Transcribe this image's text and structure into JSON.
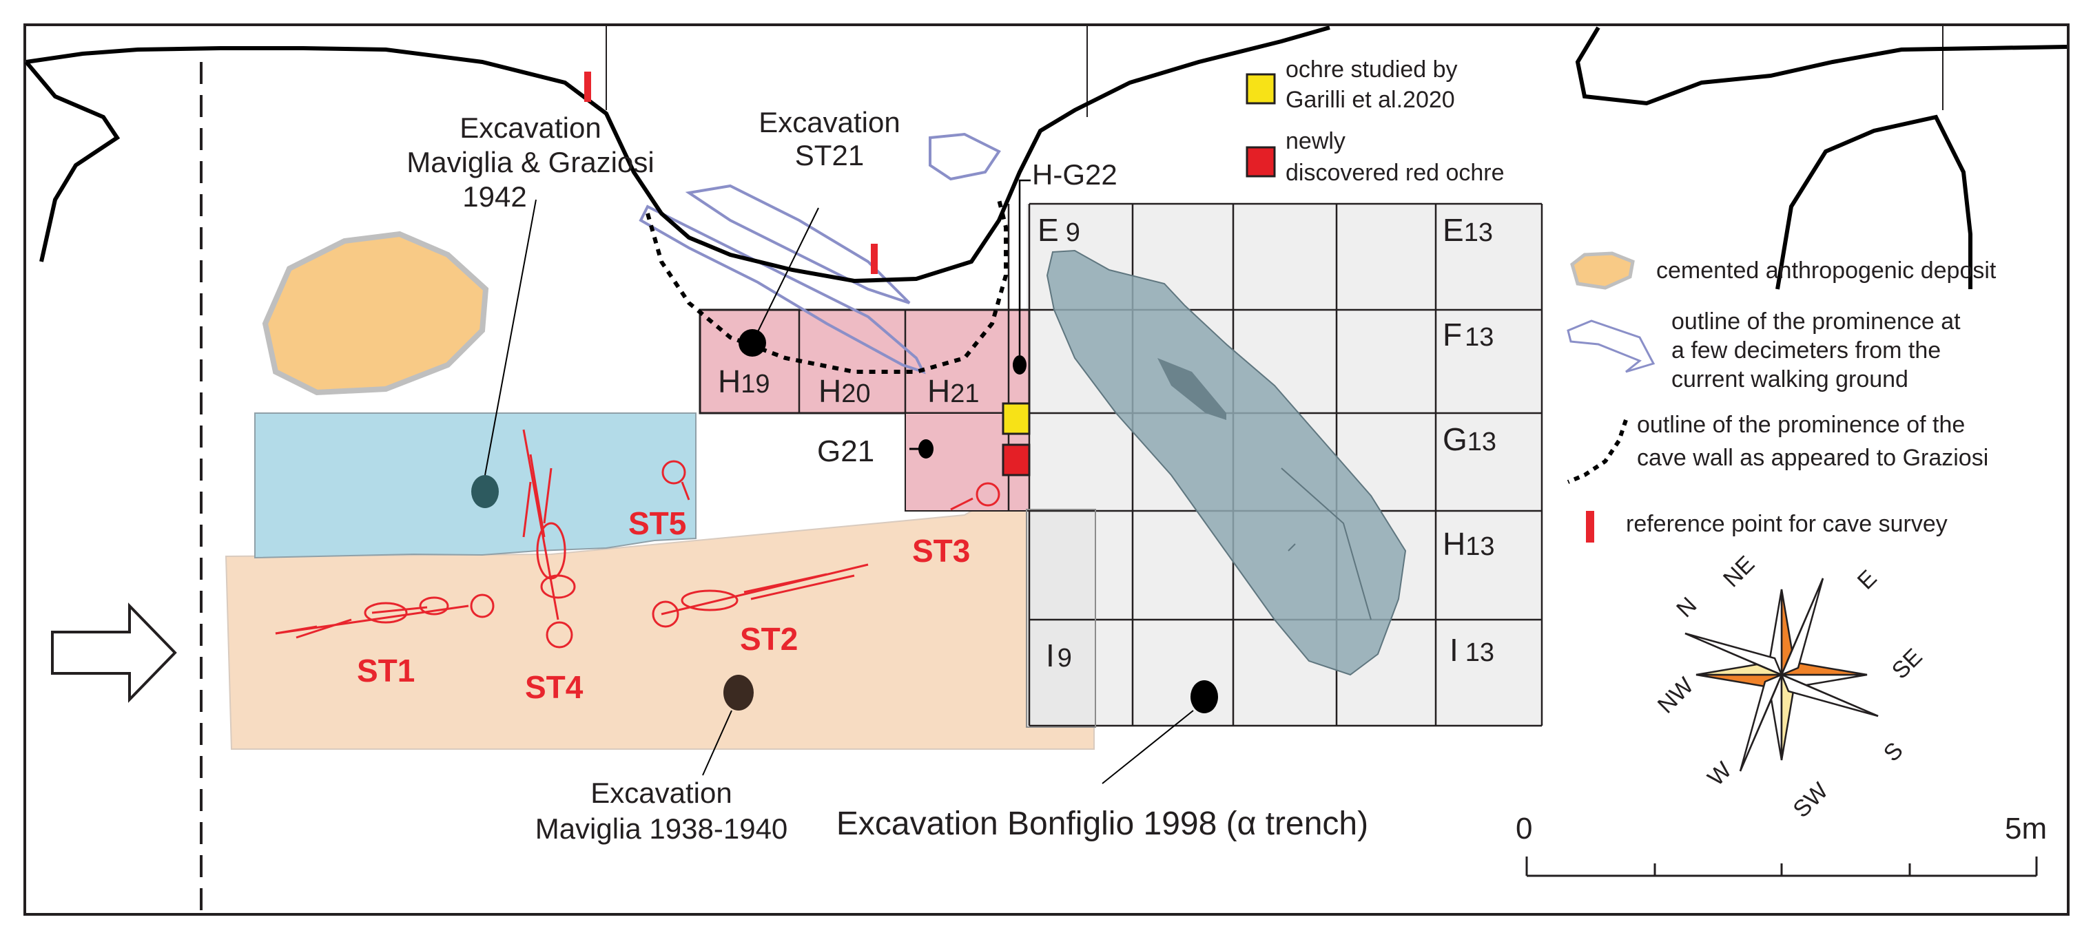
{
  "colors": {
    "sand_region": "#f7dcc2",
    "blue_region": "#b3dbe8",
    "pink_region": "#eebbc4",
    "cemented": "#f8ca86",
    "cemented_border": "#bfbfbf",
    "grey_grid": "#efefef",
    "trench": "#8fa9b3",
    "prominence_outline": "#8a8fc8",
    "skeleton_red": "#e8252d",
    "ochre_yellow": "#f7e217",
    "ochre_red": "#e41f26",
    "compass_orange": "#f08229",
    "compass_yellow": "#fae8a2"
  },
  "labels": {
    "excavation_1942": [
      "Excavation",
      "Maviglia & Graziosi",
      "1942"
    ],
    "excavation_st21": [
      "Excavation",
      "ST21"
    ],
    "excavation_1938": [
      "Excavation",
      "Maviglia 1938-1940"
    ],
    "excavation_1998": "Excavation Bonfiglio 1998 (α trench)",
    "hg22": "H-G22",
    "g21": "G21"
  },
  "squares": {
    "h19": {
      "letter": "H",
      "num": "19"
    },
    "h20": {
      "letter": "H",
      "num": "20"
    },
    "h21": {
      "letter": "H",
      "num": "21"
    },
    "e9": {
      "letter": "E",
      "num": "9"
    },
    "e13": {
      "letter": "E",
      "num": "13"
    },
    "f13": {
      "letter": "F",
      "num": "13"
    },
    "g13": {
      "letter": "G",
      "num": "13"
    },
    "h13": {
      "letter": "H",
      "num": "13"
    },
    "i9": {
      "letter": "I",
      "num": "9"
    },
    "i13": {
      "letter": "I",
      "num": "13"
    }
  },
  "burials": [
    "ST1",
    "ST2",
    "ST3",
    "ST4",
    "ST5"
  ],
  "legend": {
    "ochre_studied": [
      "ochre studied by",
      "Garilli et al.2020"
    ],
    "ochre_new": [
      "newly",
      "discovered red ochre"
    ],
    "cemented": "cemented anthropogenic deposit",
    "prominence_walking": [
      "outline of the prominence at",
      "a few decimeters from the",
      "current walking ground"
    ],
    "prominence_graziosi": [
      "outline of the prominence of the",
      "cave wall as appeared to Graziosi"
    ],
    "reference_point": "reference point for cave survey"
  },
  "compass": {
    "N": "N",
    "NE": "NE",
    "E": "E",
    "SE": "SE",
    "S": "S",
    "SW": "SW",
    "W": "W",
    "NW": "NW"
  },
  "scale": {
    "start": "0",
    "end": "5m"
  }
}
